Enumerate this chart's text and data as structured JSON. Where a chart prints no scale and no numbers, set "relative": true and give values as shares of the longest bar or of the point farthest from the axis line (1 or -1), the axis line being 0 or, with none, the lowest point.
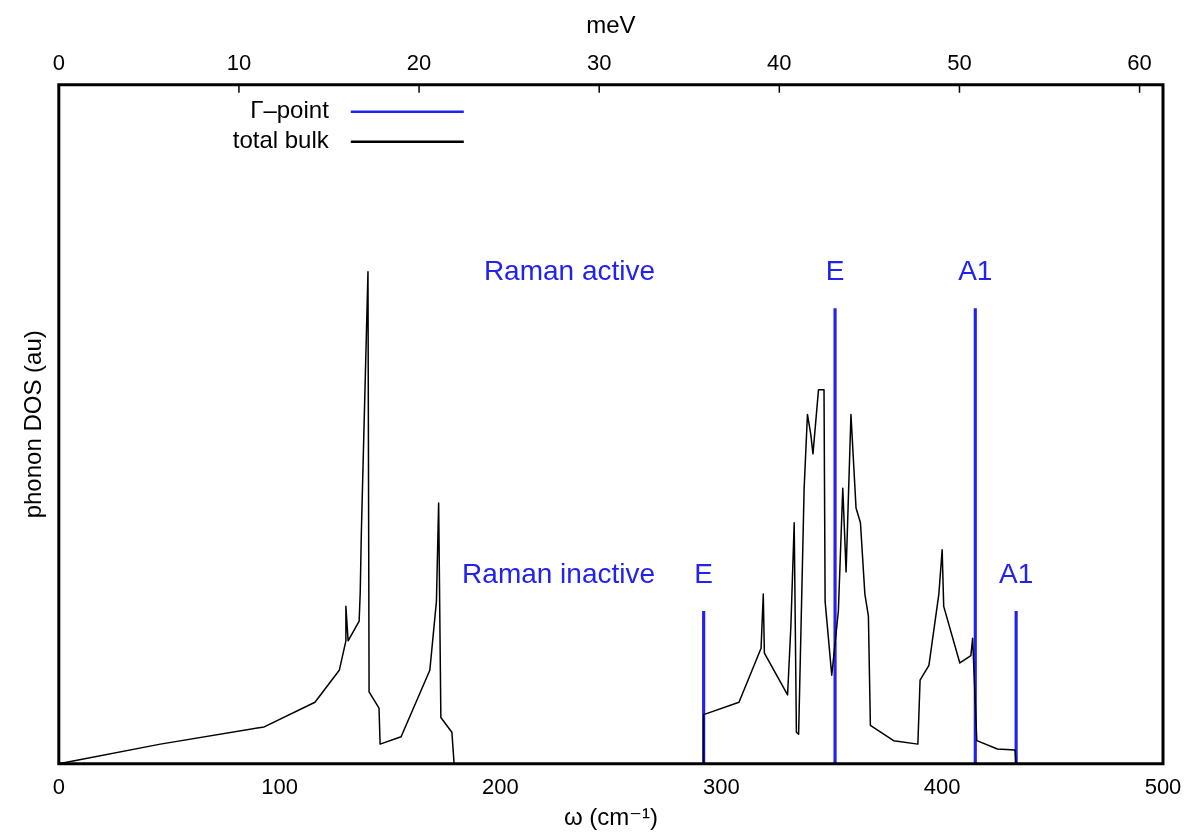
{
  "chart_data": {
    "type": "line",
    "relative": true,
    "xlabel": "ω (cm⁻¹)",
    "ylabel": "phonon DOS (au)",
    "x2label": "meV",
    "xlim": [
      0,
      500
    ],
    "xticks": [
      0,
      100,
      200,
      300,
      400,
      500
    ],
    "x2lim": [
      0,
      61.3
    ],
    "x2ticks": [
      0,
      10,
      20,
      30,
      40,
      50,
      60
    ],
    "legend": "top left",
    "grid": false,
    "marker": "none",
    "line_style": "solid",
    "series": [
      {
        "name": "Γ–point",
        "type": "bar",
        "color": "#2222ee",
        "x": [
          292,
          351.5,
          415,
          433.5
        ],
        "values": [
          0.31,
          0.925,
          0.925,
          0.31
        ]
      },
      {
        "name": "total bulk",
        "color": "#000000",
        "x": [
          0,
          46,
          93,
          116,
          127,
          130,
          130,
          131,
          136,
          136.5,
          137,
          140,
          140.5,
          145,
          145.5,
          155,
          168,
          171,
          172,
          173,
          178,
          179,
          292,
          292,
          308,
          318,
          319,
          319.5,
          330,
          331.5,
          333,
          334,
          335,
          337.5,
          339,
          340.5,
          341.5,
          344,
          346.5,
          347,
          350,
          353,
          355,
          356.5,
          358.7,
          361,
          363,
          365,
          366.6,
          367.5,
          378,
          389,
          390,
          394,
          398.5,
          400,
          400.7,
          408,
          413,
          413.8,
          415.7,
          425,
          433,
          433.5
        ],
        "values": [
          0,
          0.04,
          0.075,
          0.125,
          0.19,
          0.25,
          0.32,
          0.25,
          0.29,
          0.35,
          0.47,
          1.0,
          0.146,
          0.113,
          0.04,
          0.055,
          0.19,
          0.33,
          0.53,
          0.094,
          0.064,
          0,
          0,
          0.1,
          0.125,
          0.235,
          0.345,
          0.225,
          0.14,
          0.28,
          0.49,
          0.064,
          0.06,
          0.56,
          0.71,
          0.67,
          0.63,
          0.76,
          0.76,
          0.33,
          0.18,
          0.31,
          0.56,
          0.39,
          0.71,
          0.52,
          0.49,
          0.345,
          0.3,
          0.078,
          0.047,
          0.04,
          0.17,
          0.2,
          0.345,
          0.435,
          0.32,
          0.205,
          0.22,
          0.255,
          0.047,
          0.03,
          0.028,
          0
        ]
      }
    ],
    "annotations": [
      "Raman active",
      {
        "text": "E",
        "x": 351.5,
        "y": 0.925
      },
      {
        "text": "A1",
        "x": 415,
        "y": 0.925
      },
      "Raman inactive",
      {
        "text": "E",
        "x": 292,
        "y": 0.31
      },
      {
        "text": "A1",
        "x": 433.5,
        "y": 0.31
      }
    ]
  }
}
